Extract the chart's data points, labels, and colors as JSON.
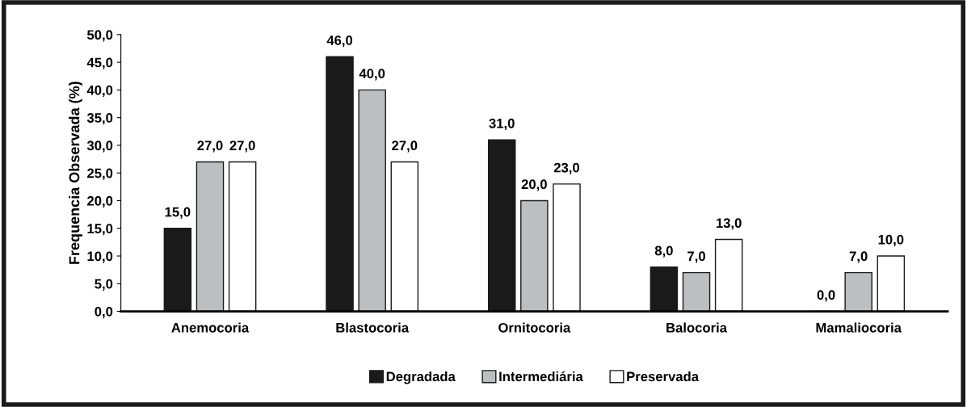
{
  "chart_data": {
    "type": "bar",
    "ylabel": "Frequencia Observada (%)",
    "categories": [
      "Anemocoria",
      "Blastocoria",
      "Ornitocoria",
      "Balocoria",
      "Mamaliocoria"
    ],
    "series": [
      {
        "name": "Degradada",
        "color": "#1a1a1a",
        "values": [
          15,
          46,
          31,
          8,
          0
        ],
        "value_labels": [
          "15,0",
          "46,0",
          "31,0",
          "8,0",
          "0,0"
        ]
      },
      {
        "name": "Intermediária",
        "color": "#bcbec0",
        "values": [
          27,
          40,
          20,
          7,
          7
        ],
        "value_labels": [
          "27,0",
          "40,0",
          "20,0",
          "7,0",
          "7,0"
        ]
      },
      {
        "name": "Preservada",
        "color": "#ffffff",
        "values": [
          27,
          27,
          23,
          13,
          10
        ],
        "value_labels": [
          "27,0",
          "27,0",
          "23,0",
          "13,0",
          "10,0"
        ]
      }
    ],
    "ylim": [
      0,
      50
    ],
    "yticks": [
      {
        "value": 0,
        "label": "0,0"
      },
      {
        "value": 5,
        "label": "5,0"
      },
      {
        "value": 10,
        "label": "10,0"
      },
      {
        "value": 15,
        "label": "15,0"
      },
      {
        "value": 20,
        "label": "20,0"
      },
      {
        "value": 25,
        "label": "25,0"
      },
      {
        "value": 30,
        "label": "30,0"
      },
      {
        "value": 35,
        "label": "35,0"
      },
      {
        "value": 40,
        "label": "40,0"
      },
      {
        "value": 45,
        "label": "45,0"
      },
      {
        "value": 50,
        "label": "50,0"
      }
    ],
    "grid": false,
    "legend": "bottom"
  }
}
